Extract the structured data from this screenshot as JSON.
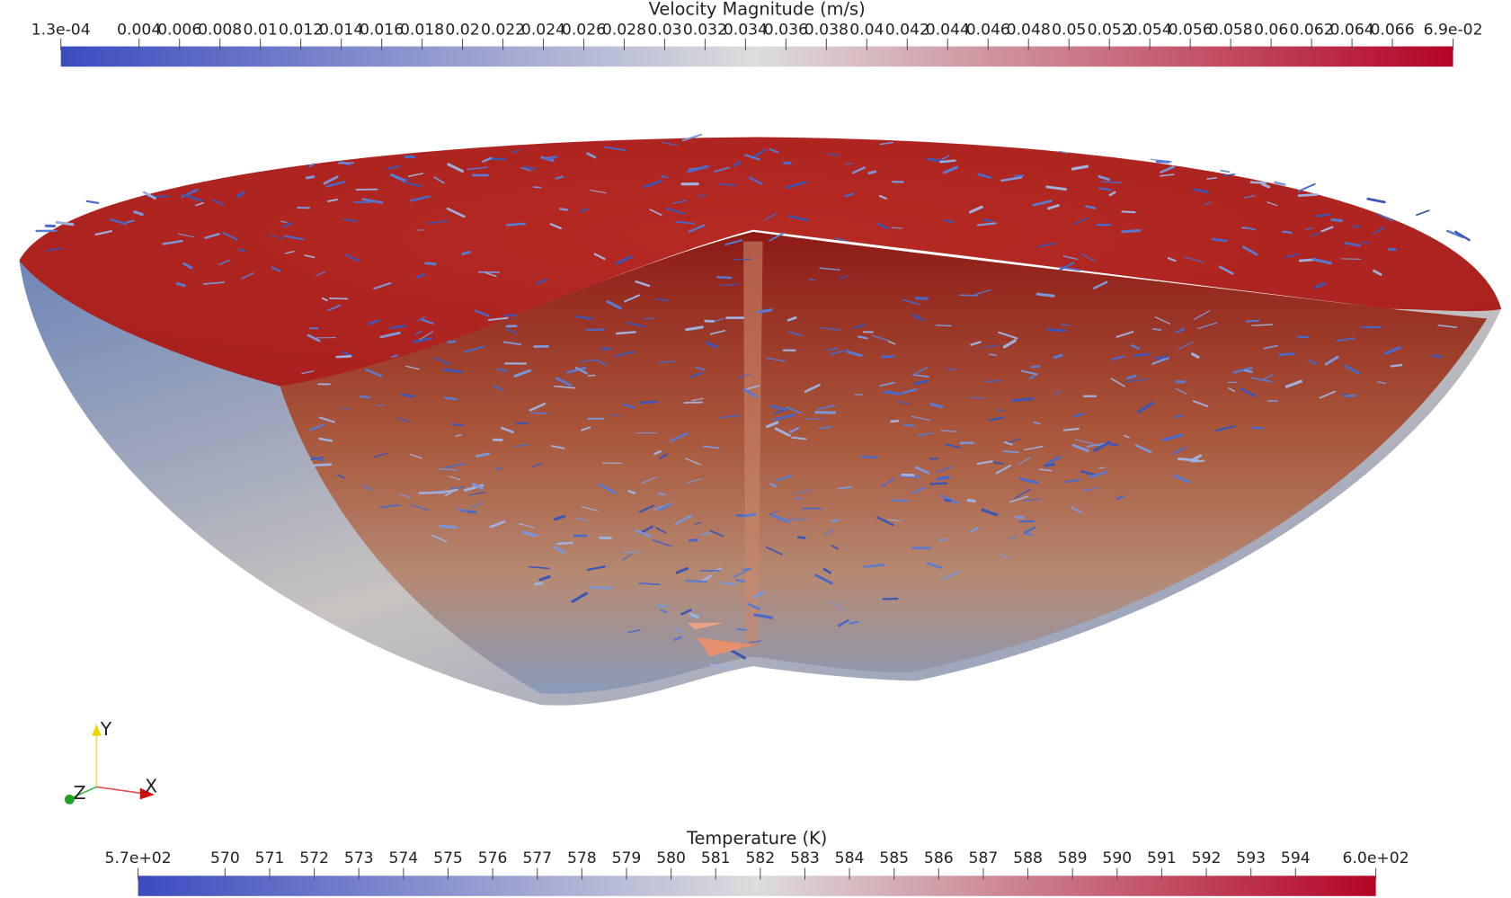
{
  "colorbars": [
    {
      "title": "Velocity Magnitude (m/s)",
      "range": [
        {
          "value": 0.00013,
          "label": "1.3e-04"
        },
        {
          "value": 0.069,
          "label": "6.9e-02"
        }
      ],
      "ticks": [
        0.004,
        0.006,
        0.008,
        0.01,
        0.012,
        0.014,
        0.016,
        0.018,
        0.02,
        0.022,
        0.024,
        0.026,
        0.028,
        0.03,
        0.032,
        0.034,
        0.036,
        0.038,
        0.04,
        0.042,
        0.044,
        0.046,
        0.048,
        0.05,
        0.052,
        0.054,
        0.056,
        0.058,
        0.06,
        0.062,
        0.064,
        0.066
      ],
      "colors": [
        "#3b4cc0",
        "#dddddd",
        "#b40426"
      ]
    },
    {
      "title": "Temperature (K)",
      "range": [
        {
          "value": 568.05,
          "label": "5.7e+02"
        },
        {
          "value": 595.8,
          "label": "6.0e+02"
        }
      ],
      "ticks": [
        570,
        571,
        572,
        573,
        574,
        575,
        576,
        577,
        578,
        579,
        580,
        581,
        582,
        583,
        584,
        585,
        586,
        587,
        588,
        589,
        590,
        591,
        592,
        593,
        594
      ],
      "colors": [
        "#3b4cc0",
        "#dddddd",
        "#b40426"
      ]
    }
  ],
  "orientation_axes": {
    "x": "X",
    "y": "Y",
    "z": "Z"
  }
}
